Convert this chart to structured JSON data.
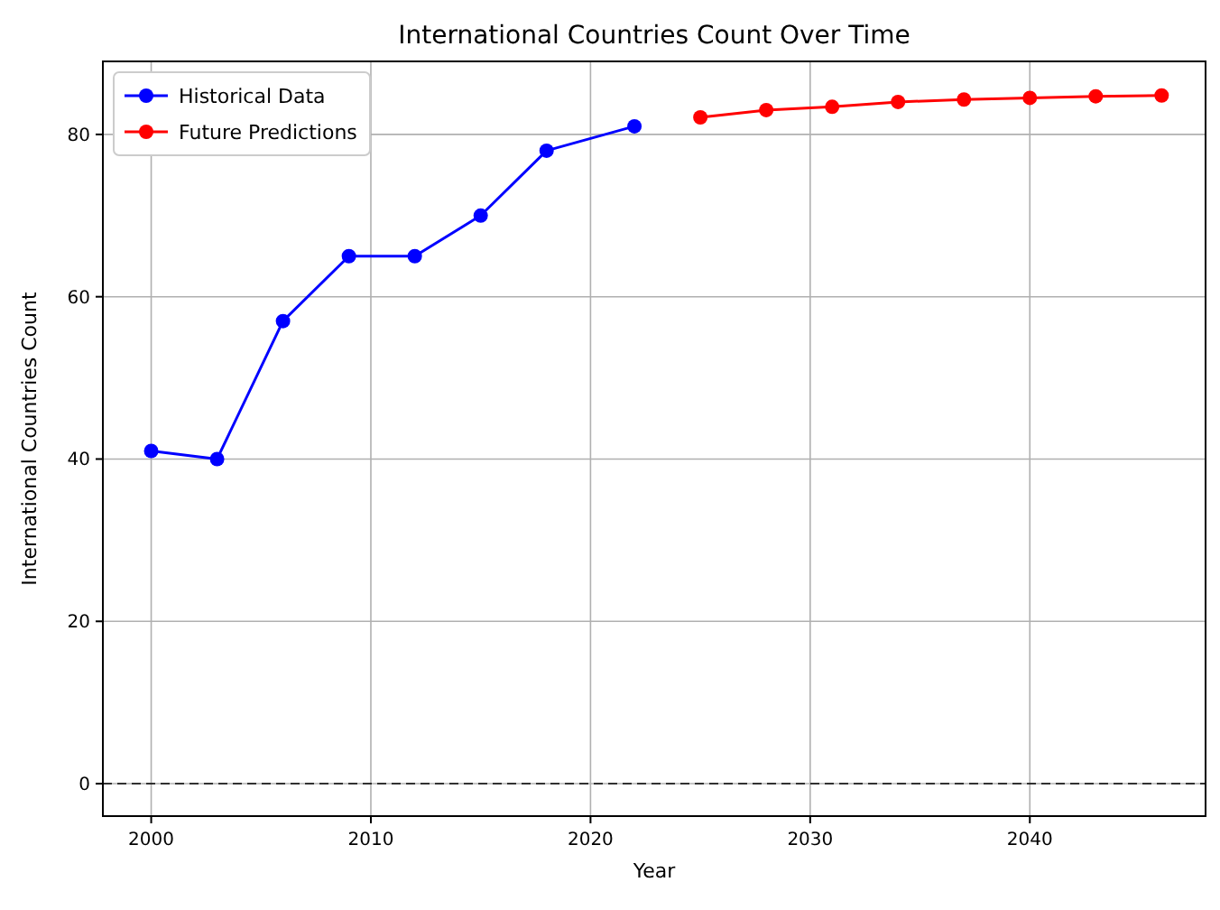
{
  "chart_data": {
    "type": "line",
    "title": "International Countries Count Over Time",
    "xlabel": "Year",
    "ylabel": "International Countries Count",
    "series": [
      {
        "name": "Historical Data",
        "color": "#0000ff",
        "x": [
          2000,
          2003,
          2006,
          2009,
          2012,
          2015,
          2018,
          2022
        ],
        "values": [
          41,
          40,
          57,
          65,
          65,
          70,
          78,
          81
        ]
      },
      {
        "name": "Future Predictions",
        "color": "#ff0000",
        "x": [
          2025,
          2028,
          2031,
          2034,
          2037,
          2040,
          2043,
          2046
        ],
        "values": [
          82.1,
          83,
          83.4,
          84,
          84.3,
          84.5,
          84.7,
          84.8
        ]
      }
    ],
    "xlim": [
      1997.8,
      2048
    ],
    "xticks": [
      2000,
      2010,
      2020,
      2030,
      2040
    ],
    "ylim": [
      -4,
      89
    ],
    "yticks": [
      0,
      20,
      40,
      60,
      80
    ],
    "ref_lines": [
      {
        "axis": "y",
        "value": 0,
        "color": "#000000",
        "line_style": "dashed"
      }
    ],
    "grid": true,
    "legend": "top left",
    "marker": "circle",
    "line_style": "solid"
  }
}
